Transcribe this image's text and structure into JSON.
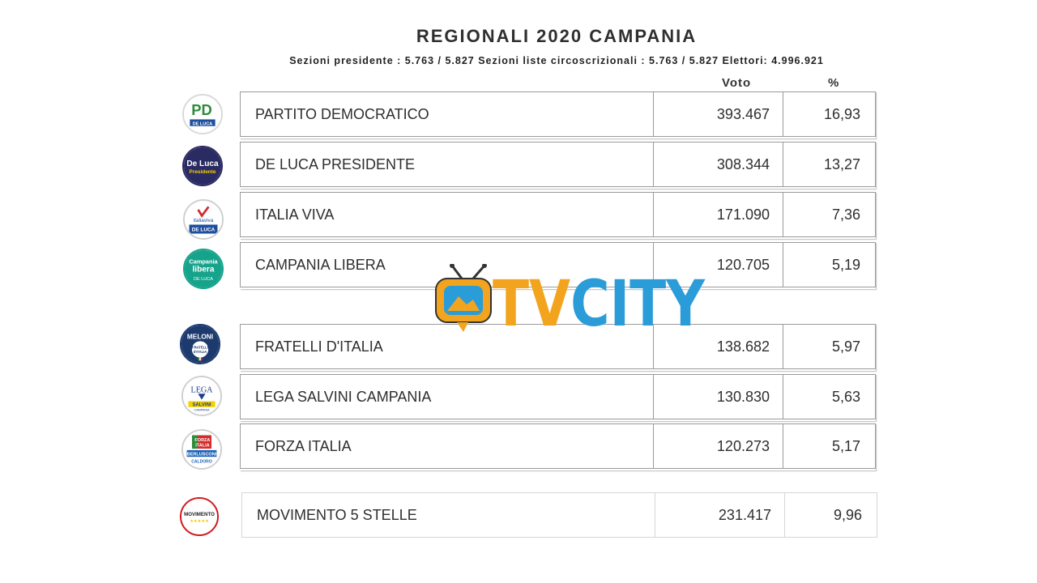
{
  "header": {
    "title": "REGIONALI 2020 CAMPANIA",
    "subtitle": "Sezioni presidente : 5.763 / 5.827 Sezioni liste circoscrizionali : 5.763 / 5.827 Elettori: 4.996.921"
  },
  "columns": {
    "voto": "Voto",
    "pct": "%"
  },
  "rows": [
    {
      "party": "PARTITO DEMOCRATICO",
      "votes": "393.467",
      "pct": "16,93",
      "logo": "pd-logo"
    },
    {
      "party": "DE LUCA PRESIDENTE",
      "votes": "308.344",
      "pct": "13,27",
      "logo": "de-luca-presidente-logo"
    },
    {
      "party": "ITALIA VIVA",
      "votes": "171.090",
      "pct": "7,36",
      "logo": "italia-viva-logo"
    },
    {
      "party": "CAMPANIA LIBERA",
      "votes": "120.705",
      "pct": "5,19",
      "logo": "campania-libera-logo"
    },
    {
      "party": "FRATELLI D'ITALIA",
      "votes": "138.682",
      "pct": "5,97",
      "logo": "fratelli-ditalia-logo"
    },
    {
      "party": "LEGA SALVINI CAMPANIA",
      "votes": "130.830",
      "pct": "5,63",
      "logo": "lega-salvini-logo"
    },
    {
      "party": "FORZA ITALIA",
      "votes": "120.273",
      "pct": "5,17",
      "logo": "forza-italia-logo"
    },
    {
      "party": "MOVIMENTO 5 STELLE",
      "votes": "231.417",
      "pct": "9,96",
      "logo": "movimento-5-stelle-logo"
    }
  ],
  "logos": {
    "pd": {
      "letters": "PD",
      "caption": "DE LUCA"
    },
    "de_luca": {
      "line1": "De Luca",
      "line2": "Presidente"
    },
    "italia_viva": {
      "line1": "italiaviva",
      "line2": "DE LUCA"
    },
    "campania_libera": {
      "line1": "Campania",
      "line2": "libera",
      "line3": "DE LUCA"
    },
    "fratelli": {
      "line1": "MELONI",
      "line2": "FRATELLI",
      "line3": "d'ITALIA"
    },
    "lega": {
      "line1": "LEGA",
      "line2": "SALVINI",
      "line3": "CAMPANIA"
    },
    "forza": {
      "line1": "FORZA",
      "line2": "ITALIA",
      "line3": "BERLUSCONI",
      "line4": "CALDORO"
    },
    "m5s": {
      "line1": "MOVIMENTO",
      "line2": "★★★★★"
    }
  },
  "watermark": {
    "text": "TVCITY"
  },
  "colors": {
    "pd_green": "#2e8b3a",
    "pd_red": "#d42a2a",
    "de_luca_navy": "#2b2b63",
    "campania_teal": "#16a38c",
    "fdi_blue": "#1d3a6e",
    "lega_blue": "#1c3f8c",
    "forza_blue": "#1f62b8",
    "m5s_red": "#d11a1a",
    "tvcity_orange": "#f2a41e",
    "tvcity_blue": "#2a9cd8"
  }
}
